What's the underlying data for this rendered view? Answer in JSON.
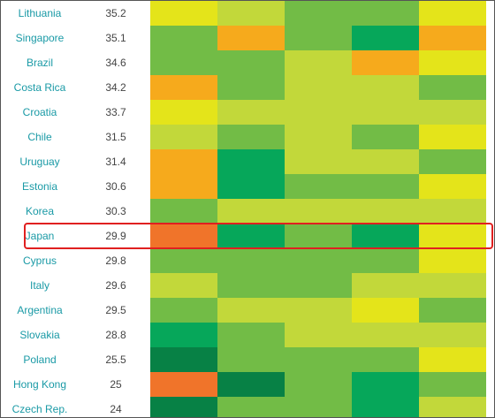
{
  "chart_data": {
    "type": "heatmap",
    "highlighted_row": "Japan",
    "colors": {
      "dark_green": "#078145",
      "green": "#06a75a",
      "mid_green": "#72bc46",
      "yellow_green": "#c2d83a",
      "yellow": "#e4e41a",
      "orange": "#f6aa1c",
      "red_orange": "#f0742a",
      "label": "#1a9aa6",
      "value": "#444444",
      "highlight": "#e02020"
    },
    "rows": [
      {
        "label": "Lithuania",
        "value": "35.2",
        "cells": [
          "yellow",
          "yellow_green",
          "mid_green",
          "mid_green",
          "yellow"
        ]
      },
      {
        "label": "Singapore",
        "value": "35.1",
        "cells": [
          "mid_green",
          "orange",
          "mid_green",
          "green",
          "orange"
        ]
      },
      {
        "label": "Brazil",
        "value": "34.6",
        "cells": [
          "mid_green",
          "mid_green",
          "yellow_green",
          "orange",
          "yellow"
        ]
      },
      {
        "label": "Costa Rica",
        "value": "34.2",
        "cells": [
          "orange",
          "mid_green",
          "yellow_green",
          "yellow_green",
          "mid_green"
        ]
      },
      {
        "label": "Croatia",
        "value": "33.7",
        "cells": [
          "yellow",
          "yellow_green",
          "yellow_green",
          "yellow_green",
          "yellow_green"
        ]
      },
      {
        "label": "Chile",
        "value": "31.5",
        "cells": [
          "yellow_green",
          "mid_green",
          "yellow_green",
          "mid_green",
          "yellow"
        ]
      },
      {
        "label": "Uruguay",
        "value": "31.4",
        "cells": [
          "orange",
          "green",
          "yellow_green",
          "yellow_green",
          "mid_green"
        ]
      },
      {
        "label": "Estonia",
        "value": "30.6",
        "cells": [
          "orange",
          "green",
          "mid_green",
          "mid_green",
          "yellow"
        ]
      },
      {
        "label": "Korea",
        "value": "30.3",
        "cells": [
          "mid_green",
          "yellow_green",
          "yellow_green",
          "yellow_green",
          "yellow_green"
        ]
      },
      {
        "label": "Japan",
        "value": "29.9",
        "cells": [
          "red_orange",
          "green",
          "mid_green",
          "green",
          "yellow"
        ]
      },
      {
        "label": "Cyprus",
        "value": "29.8",
        "cells": [
          "mid_green",
          "mid_green",
          "mid_green",
          "mid_green",
          "yellow"
        ]
      },
      {
        "label": "Italy",
        "value": "29.6",
        "cells": [
          "yellow_green",
          "mid_green",
          "mid_green",
          "yellow_green",
          "yellow_green"
        ]
      },
      {
        "label": "Argentina",
        "value": "29.5",
        "cells": [
          "mid_green",
          "yellow_green",
          "yellow_green",
          "yellow",
          "mid_green"
        ]
      },
      {
        "label": "Slovakia",
        "value": "28.8",
        "cells": [
          "green",
          "mid_green",
          "yellow_green",
          "yellow_green",
          "yellow_green"
        ]
      },
      {
        "label": "Poland",
        "value": "25.5",
        "cells": [
          "dark_green",
          "mid_green",
          "mid_green",
          "mid_green",
          "yellow"
        ]
      },
      {
        "label": "Hong Kong",
        "value": "25",
        "cells": [
          "red_orange",
          "dark_green",
          "mid_green",
          "green",
          "mid_green"
        ]
      },
      {
        "label": "Czech Rep.",
        "value": "24",
        "cells": [
          "dark_green",
          "mid_green",
          "mid_green",
          "green",
          "yellow_green"
        ]
      }
    ]
  }
}
